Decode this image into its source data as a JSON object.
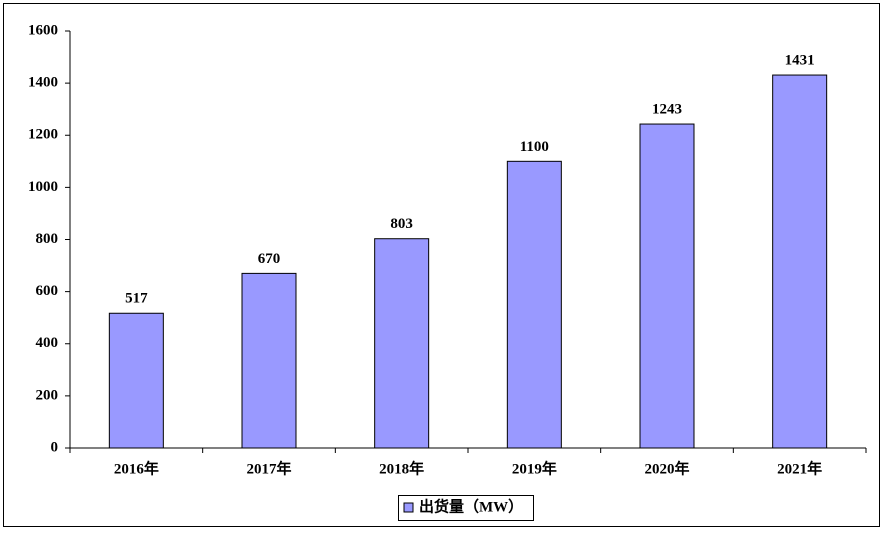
{
  "chart_data": {
    "type": "bar",
    "categories": [
      "2016年",
      "2017年",
      "2018年",
      "2019年",
      "2020年",
      "2021年"
    ],
    "series": [
      {
        "name": "出货量（MW）",
        "color": "#9999ff",
        "values": [
          517,
          670,
          803,
          1100,
          1243,
          1431
        ]
      }
    ],
    "ylim": [
      0,
      1600
    ],
    "yticks": [
      0,
      200,
      400,
      600,
      800,
      1000,
      1200,
      1400,
      1600
    ],
    "grid": false,
    "data_labels": true,
    "legend": "bottom"
  }
}
